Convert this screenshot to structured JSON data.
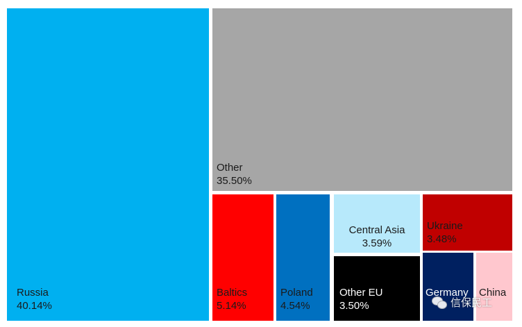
{
  "chart_data": {
    "type": "treemap",
    "title": "",
    "items": [
      {
        "name": "Russia",
        "value_label": "40.14%",
        "value": 40.14,
        "color": "#00b0f0",
        "text_color": "#1a1a1a"
      },
      {
        "name": "Other",
        "value_label": "35.50%",
        "value": 35.5,
        "color": "#a6a6a6",
        "text_color": "#1a1a1a"
      },
      {
        "name": "Baltics",
        "value_label": "5.14%",
        "value": 5.14,
        "color": "#ff0000",
        "text_color": "#1a1a1a"
      },
      {
        "name": "Poland",
        "value_label": "4.54%",
        "value": 4.54,
        "color": "#0070c0",
        "text_color": "#1a1a1a"
      },
      {
        "name": "Central Asia",
        "value_label": "3.59%",
        "value": 3.59,
        "color": "#b7e9fb",
        "text_color": "#1a1a1a"
      },
      {
        "name": "Ukraine",
        "value_label": "3.48%",
        "value": 3.48,
        "color": "#c00000",
        "text_color": "#1a1a1a"
      },
      {
        "name": "Other EU",
        "value_label": "3.50%",
        "value": 3.5,
        "color": "#000000",
        "text_color": "#ffffff"
      },
      {
        "name": "Germany",
        "value_label": "",
        "value": null,
        "color": "#002060",
        "text_color": "#ffffff"
      },
      {
        "name": "China",
        "value_label": "",
        "value": null,
        "color": "#ffc7ce",
        "text_color": "#1a1a1a"
      }
    ]
  },
  "watermark": {
    "text": "信保民工",
    "icon": "wechat-icon"
  }
}
